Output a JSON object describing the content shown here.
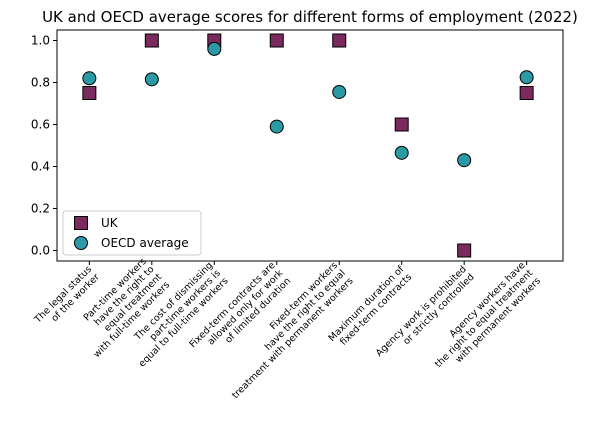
{
  "chart_data": {
    "type": "scatter",
    "title": "UK and OECD average scores for different forms of employment (2022)",
    "categories": [
      [
        "The legal status",
        "of the worker"
      ],
      [
        "Part-time workers",
        "have the right to",
        "equal treatment",
        "with full-time workers"
      ],
      [
        "The cost of dismissing",
        "part-time workers is",
        "equal to full-time workers"
      ],
      [
        "Fixed-term contracts are",
        "allowed only for work",
        "of limited duration"
      ],
      [
        "Fixed-term workers",
        "have the right to equal",
        "treatment with permanent workers"
      ],
      [
        "Maximum duration of",
        "fixed-term contracts"
      ],
      [
        "Agency work is prohibited",
        "or strictly controlled"
      ],
      [
        "Agency workers have",
        "the right to equal treatment",
        "with permanent workers"
      ]
    ],
    "ylim": [
      -0.05,
      1.05
    ],
    "yticks": [
      "0.0",
      "0.2",
      "0.4",
      "0.6",
      "0.8",
      "1.0"
    ],
    "ytick_values": [
      0.0,
      0.2,
      0.4,
      0.6,
      0.8,
      1.0
    ],
    "grid": false,
    "legend_position": "lower-left",
    "series": [
      {
        "name": "UK",
        "marker": "square",
        "color": "#7b2a5e",
        "values": [
          0.75,
          1.0,
          1.0,
          1.0,
          1.0,
          0.6,
          0.0,
          0.75
        ]
      },
      {
        "name": "OECD average",
        "marker": "circle",
        "color": "#2a9aa5",
        "values": [
          0.82,
          0.815,
          0.96,
          0.59,
          0.755,
          0.465,
          0.43,
          0.825
        ]
      }
    ]
  }
}
